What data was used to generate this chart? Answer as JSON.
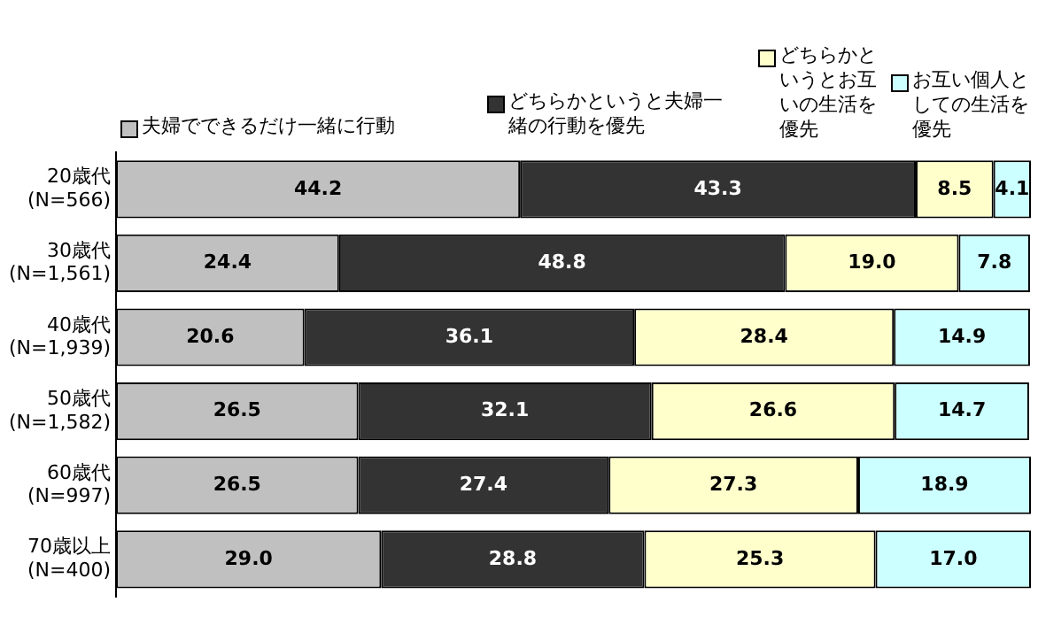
{
  "chart_data": {
    "type": "bar",
    "orientation": "horizontal",
    "stacked": true,
    "tick_labels": "y",
    "grid": false,
    "legend": "top",
    "xlim": [
      0,
      100.1
    ],
    "categories": [
      "20歳代\n(N=566)",
      "30歳代\n(N=1,561)",
      "40歳代\n(N=1,939)",
      "50歳代\n(N=1,582)",
      "60歳代\n(N=997)",
      "70歳以上\n(N=400)"
    ],
    "series": [
      {
        "name": "夫婦でできるだけ一緒に行動",
        "color": "#c0c0c0",
        "values": [
          44.2,
          24.4,
          20.6,
          26.5,
          26.5,
          29.0
        ],
        "value_labels": [
          "44.2",
          "24.4",
          "20.6",
          "26.5",
          "26.5",
          "29.0"
        ]
      },
      {
        "name": "どちらかというと夫婦一緒の行動を優先",
        "color": "#333333",
        "values": [
          43.3,
          48.8,
          36.1,
          32.1,
          27.4,
          28.8
        ],
        "value_labels": [
          "43.3",
          "48.8",
          "36.1",
          "32.1",
          "27.4",
          "28.8"
        ]
      },
      {
        "name": "どちらかというとお互いの生活を優先",
        "color": "#ffffcc",
        "values": [
          8.5,
          19.0,
          28.4,
          26.6,
          27.3,
          25.3
        ],
        "value_labels": [
          "8.5",
          "19.0",
          "28.4",
          "26.6",
          "27.3",
          "25.3"
        ]
      },
      {
        "name": "お互い個人としての生活を優先",
        "color": "#ccffff",
        "values": [
          4.1,
          7.8,
          14.9,
          14.7,
          18.9,
          17.0
        ],
        "value_labels": [
          "4.1",
          "7.8",
          "14.9",
          "14.7",
          "18.9",
          "17.0"
        ]
      }
    ]
  }
}
